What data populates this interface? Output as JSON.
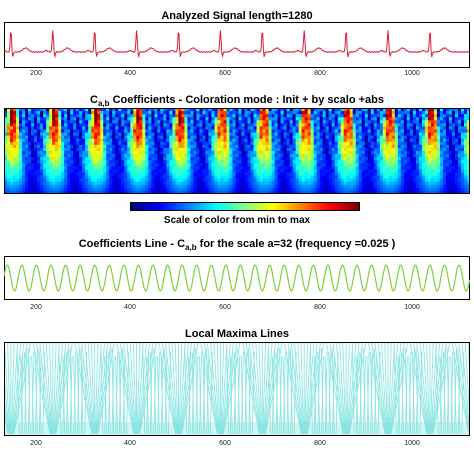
{
  "colors": {
    "ecg": "#d81e3c",
    "coef_line": "#7cd23a",
    "maxima": "#7fe3e0",
    "frame": "#000000"
  },
  "chart_data": [
    {
      "type": "line",
      "title": "Analyzed Signal length=1280",
      "xlim": [
        1,
        1280
      ],
      "xticks": [
        200,
        400,
        600,
        800,
        1000
      ],
      "description_series": "ECG signal with periodic R-peaks",
      "peak_positions": [
        20,
        135,
        250,
        365,
        480,
        595,
        710,
        825,
        940,
        1055,
        1170
      ]
    },
    {
      "type": "heatmap",
      "title_prefix": "C",
      "title_sub": "a,b",
      "title_suffix": "  Coefficients - Coloration mode :  Init + by scalo +abs",
      "xlim": [
        1,
        1280
      ],
      "colorbar_label": "Scale of color from min to max"
    },
    {
      "type": "line",
      "title_prefix": "Coefficients Line - C",
      "title_sub": "a,b",
      "title_suffix": " for the scale a=32  (frequency =0.025 )",
      "scale": 32,
      "frequency": 0.025,
      "xlim": [
        1,
        1280
      ],
      "xticks": [
        200,
        400,
        600,
        800,
        1000
      ]
    },
    {
      "type": "scatter",
      "title": "Local Maxima Lines",
      "xlim": [
        1,
        1280
      ],
      "xticks": [
        200,
        400,
        600,
        800,
        1000
      ]
    }
  ],
  "ticks": {
    "t200": "200",
    "t400": "400",
    "t600": "600",
    "t800": "800",
    "t1000": "1000"
  }
}
